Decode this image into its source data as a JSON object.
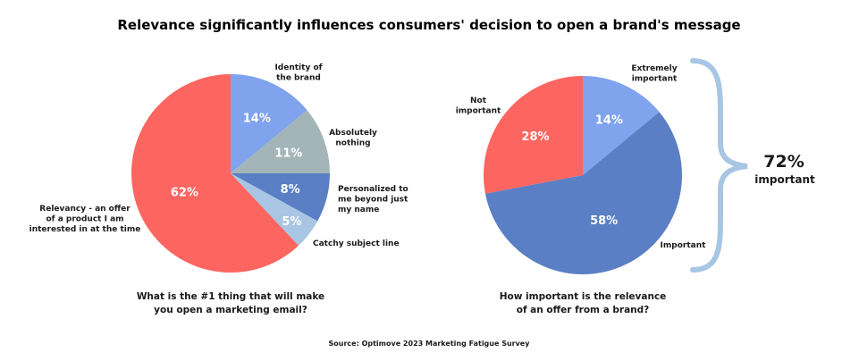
{
  "title": "Relevance significantly influences consumers' decision to open a brand's message",
  "source": "Source: Optimove 2023 Marketing Fatigue Survey",
  "chart_data": [
    {
      "type": "pie",
      "question": [
        "What is the #1 thing that will make",
        "you open a marketing email?"
      ],
      "slices": [
        {
          "label": [
            "Identity of",
            "the brand"
          ],
          "value": 14,
          "display": "14%",
          "color": "#7fa3ec"
        },
        {
          "label": [
            "Absolutely",
            "nothing"
          ],
          "value": 11,
          "display": "11%",
          "color": "#a3b5b9"
        },
        {
          "label": [
            "Personalized to",
            "me beyond just",
            "my name"
          ],
          "value": 8,
          "display": "8%",
          "color": "#5b7fc5"
        },
        {
          "label": [
            "Catchy subject line"
          ],
          "value": 5,
          "display": "5%",
          "color": "#a8c6e4"
        },
        {
          "label": [
            "Relevancy - an offer",
            "of a product I am",
            "interested in at the time"
          ],
          "value": 62,
          "display": "62%",
          "color": "#fd6561"
        }
      ]
    },
    {
      "type": "pie",
      "question": [
        "How important is the relevance",
        "of an offer from a brand?"
      ],
      "slices": [
        {
          "label": [
            "Extremely",
            "important"
          ],
          "value": 14,
          "display": "14%",
          "color": "#7fa3ec"
        },
        {
          "label": [
            "Important"
          ],
          "value": 58,
          "display": "58%",
          "color": "#5b7fc5"
        },
        {
          "label": [
            "Not",
            "important"
          ],
          "value": 28,
          "display": "28%",
          "color": "#fd6561"
        }
      ],
      "bracket": {
        "value": "72%",
        "label": "important",
        "color": "#a8c6e4"
      }
    }
  ]
}
